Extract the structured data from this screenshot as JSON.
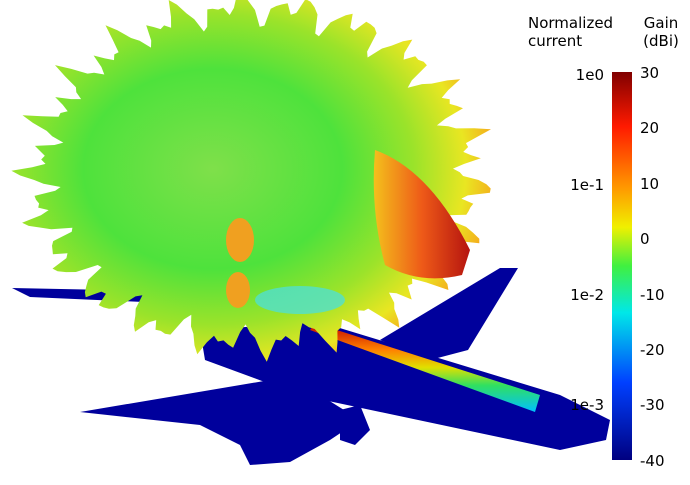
{
  "colorbar": {
    "current_title": "Normalized current",
    "gain_title": "Gain (dBi)",
    "current_ticks": [
      "1e0",
      "1e-1",
      "1e-2",
      "1e-3"
    ],
    "gain_ticks": [
      "30",
      "20",
      "10",
      "0",
      "-10",
      "-20",
      "-30",
      "-40"
    ]
  }
}
